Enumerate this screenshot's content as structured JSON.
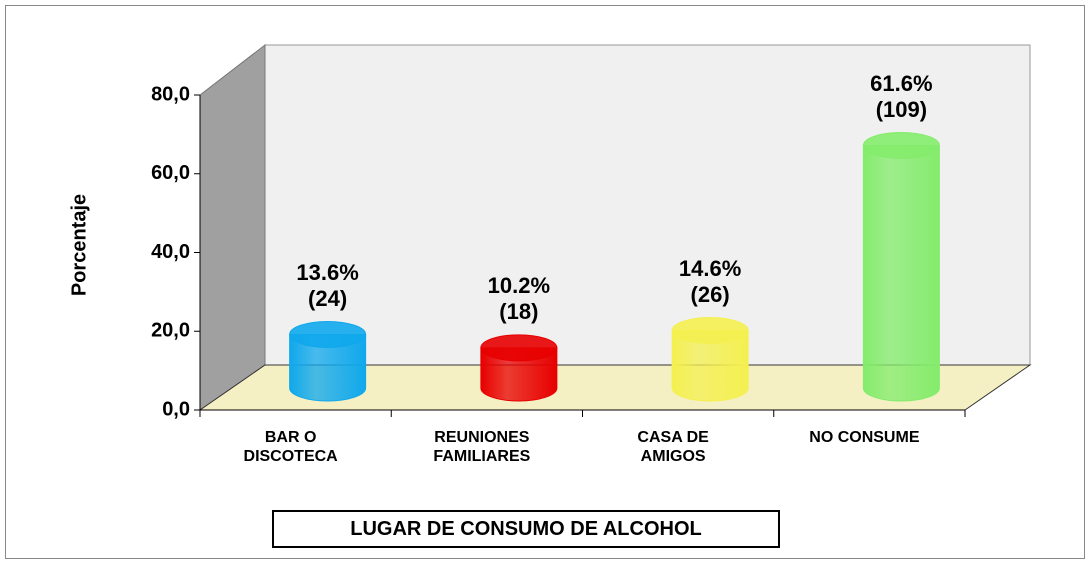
{
  "chart_data": {
    "type": "bar3d",
    "categories": [
      "BAR O\nDISCOTECA",
      "REUNIONES\nFAMILIARES",
      "CASA DE\nAMIGOS",
      "NO CONSUME"
    ],
    "values": [
      13.6,
      10.2,
      14.6,
      61.6
    ],
    "value_labels": [
      "13.6%\n(24)",
      "10.2%\n(18)",
      "14.6%\n(26)",
      "61.6%\n(109)"
    ],
    "colors": [
      "#10a8ec",
      "#e80000",
      "#f4f050",
      "#84ec6c"
    ],
    "y_label": "Porcentaje",
    "x_label": "LUGAR DE CONSUMO DE ALCOHOL",
    "ylim": [
      0,
      80
    ],
    "yticks": [
      {
        "value": 0,
        "label": "0,0"
      },
      {
        "value": 20,
        "label": "20,0"
      },
      {
        "value": 40,
        "label": "40,0"
      },
      {
        "value": 60,
        "label": "60,0"
      },
      {
        "value": 80,
        "label": "80,0"
      }
    ]
  }
}
